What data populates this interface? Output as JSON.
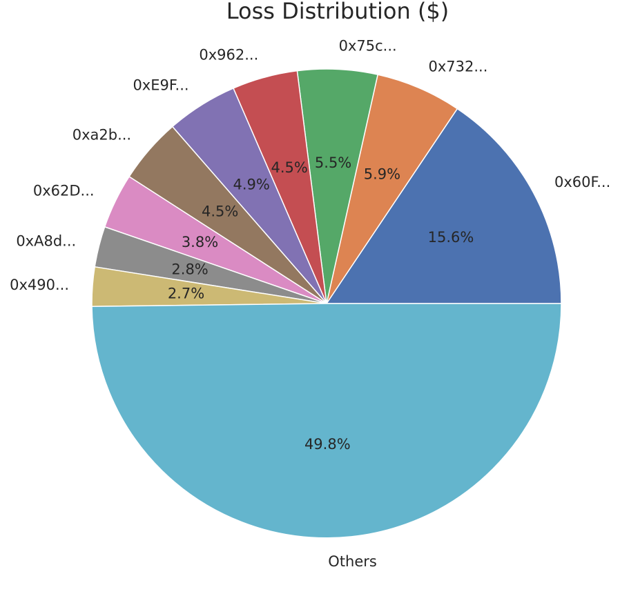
{
  "chart_data": {
    "type": "pie",
    "title": "Loss Distribution ($)",
    "start_angle_deg": 0,
    "direction": "counterclockwise",
    "slices": [
      {
        "label": "0x60F...",
        "value": 15.6,
        "pct_label": "15.6%",
        "color": "#4c72b0"
      },
      {
        "label": "0x732...",
        "value": 5.9,
        "pct_label": "5.9%",
        "color": "#dd8452"
      },
      {
        "label": "0x75c...",
        "value": 5.5,
        "pct_label": "5.5%",
        "color": "#55a868"
      },
      {
        "label": "0x962...",
        "value": 4.5,
        "pct_label": "4.5%",
        "color": "#c44e52"
      },
      {
        "label": "0xE9F...",
        "value": 4.9,
        "pct_label": "4.9%",
        "color": "#8172b3"
      },
      {
        "label": "0xa2b...",
        "value": 4.5,
        "pct_label": "4.5%",
        "color": "#937860"
      },
      {
        "label": "0x62D...",
        "value": 3.8,
        "pct_label": "3.8%",
        "color": "#da8bc3"
      },
      {
        "label": "0xA8d...",
        "value": 2.8,
        "pct_label": "2.8%",
        "color": "#8c8c8c"
      },
      {
        "label": "0x490...",
        "value": 2.7,
        "pct_label": "2.7%",
        "color": "#ccb974"
      },
      {
        "label": "Others",
        "value": 49.8,
        "pct_label": "49.8%",
        "color": "#64b5cd"
      }
    ]
  }
}
